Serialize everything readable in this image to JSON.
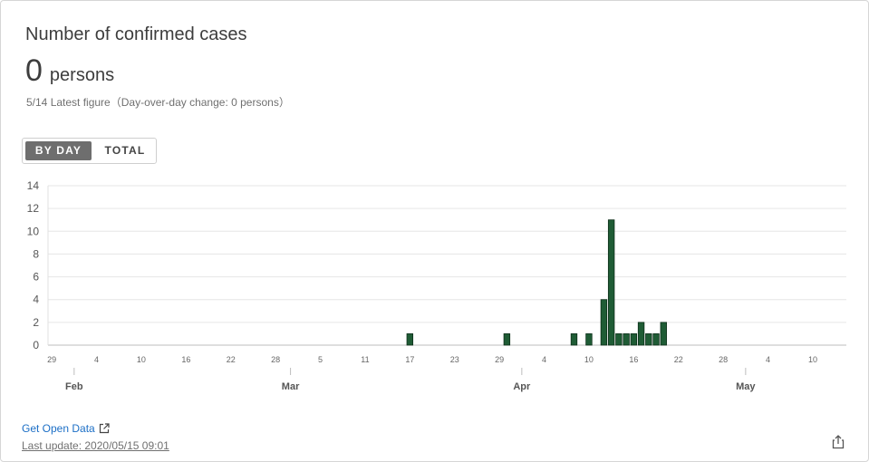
{
  "card": {
    "title": "Number of confirmed cases",
    "value": "0",
    "unit": "persons",
    "subtitle": "5/14 Latest figure（Day-over-day change: 0 persons）"
  },
  "toggle": {
    "by_day": "BY DAY",
    "total": "TOTAL",
    "selected": "by_day"
  },
  "footer": {
    "open_data_link": "Get Open Data",
    "last_update": "Last update: 2020/05/15 09:01"
  },
  "icons": {
    "external": "external-link-icon",
    "share": "share-icon"
  },
  "colors": {
    "bar": "#1f5c35",
    "bar_edge": "#0d2f1a",
    "link": "#1c6fc6",
    "toggle_active": "#6e6e6e"
  },
  "chart_data": {
    "type": "bar",
    "title": "",
    "xlabel": "",
    "ylabel": "",
    "ylim": [
      0,
      14
    ],
    "yticks": [
      0,
      2,
      4,
      6,
      8,
      10,
      12,
      14
    ],
    "grid": true,
    "x_start": "2020-01-29",
    "x_end": "2020-05-14",
    "day_tick_labels": [
      "29",
      "4",
      "10",
      "16",
      "22",
      "28",
      "5",
      "11",
      "17",
      "23",
      "29",
      "4",
      "10",
      "16",
      "22",
      "28",
      "4",
      "10"
    ],
    "month_labels": [
      "Feb",
      "Mar",
      "Apr",
      "May"
    ],
    "series": [
      {
        "values": [
          {
            "date": "2020-03-17",
            "value": 1
          },
          {
            "date": "2020-03-30",
            "value": 1
          },
          {
            "date": "2020-04-08",
            "value": 1
          },
          {
            "date": "2020-04-10",
            "value": 1
          },
          {
            "date": "2020-04-12",
            "value": 4
          },
          {
            "date": "2020-04-13",
            "value": 11
          },
          {
            "date": "2020-04-14",
            "value": 1
          },
          {
            "date": "2020-04-15",
            "value": 1
          },
          {
            "date": "2020-04-16",
            "value": 1
          },
          {
            "date": "2020-04-17",
            "value": 2
          },
          {
            "date": "2020-04-18",
            "value": 1
          },
          {
            "date": "2020-04-19",
            "value": 1
          },
          {
            "date": "2020-04-20",
            "value": 2
          }
        ]
      }
    ]
  }
}
